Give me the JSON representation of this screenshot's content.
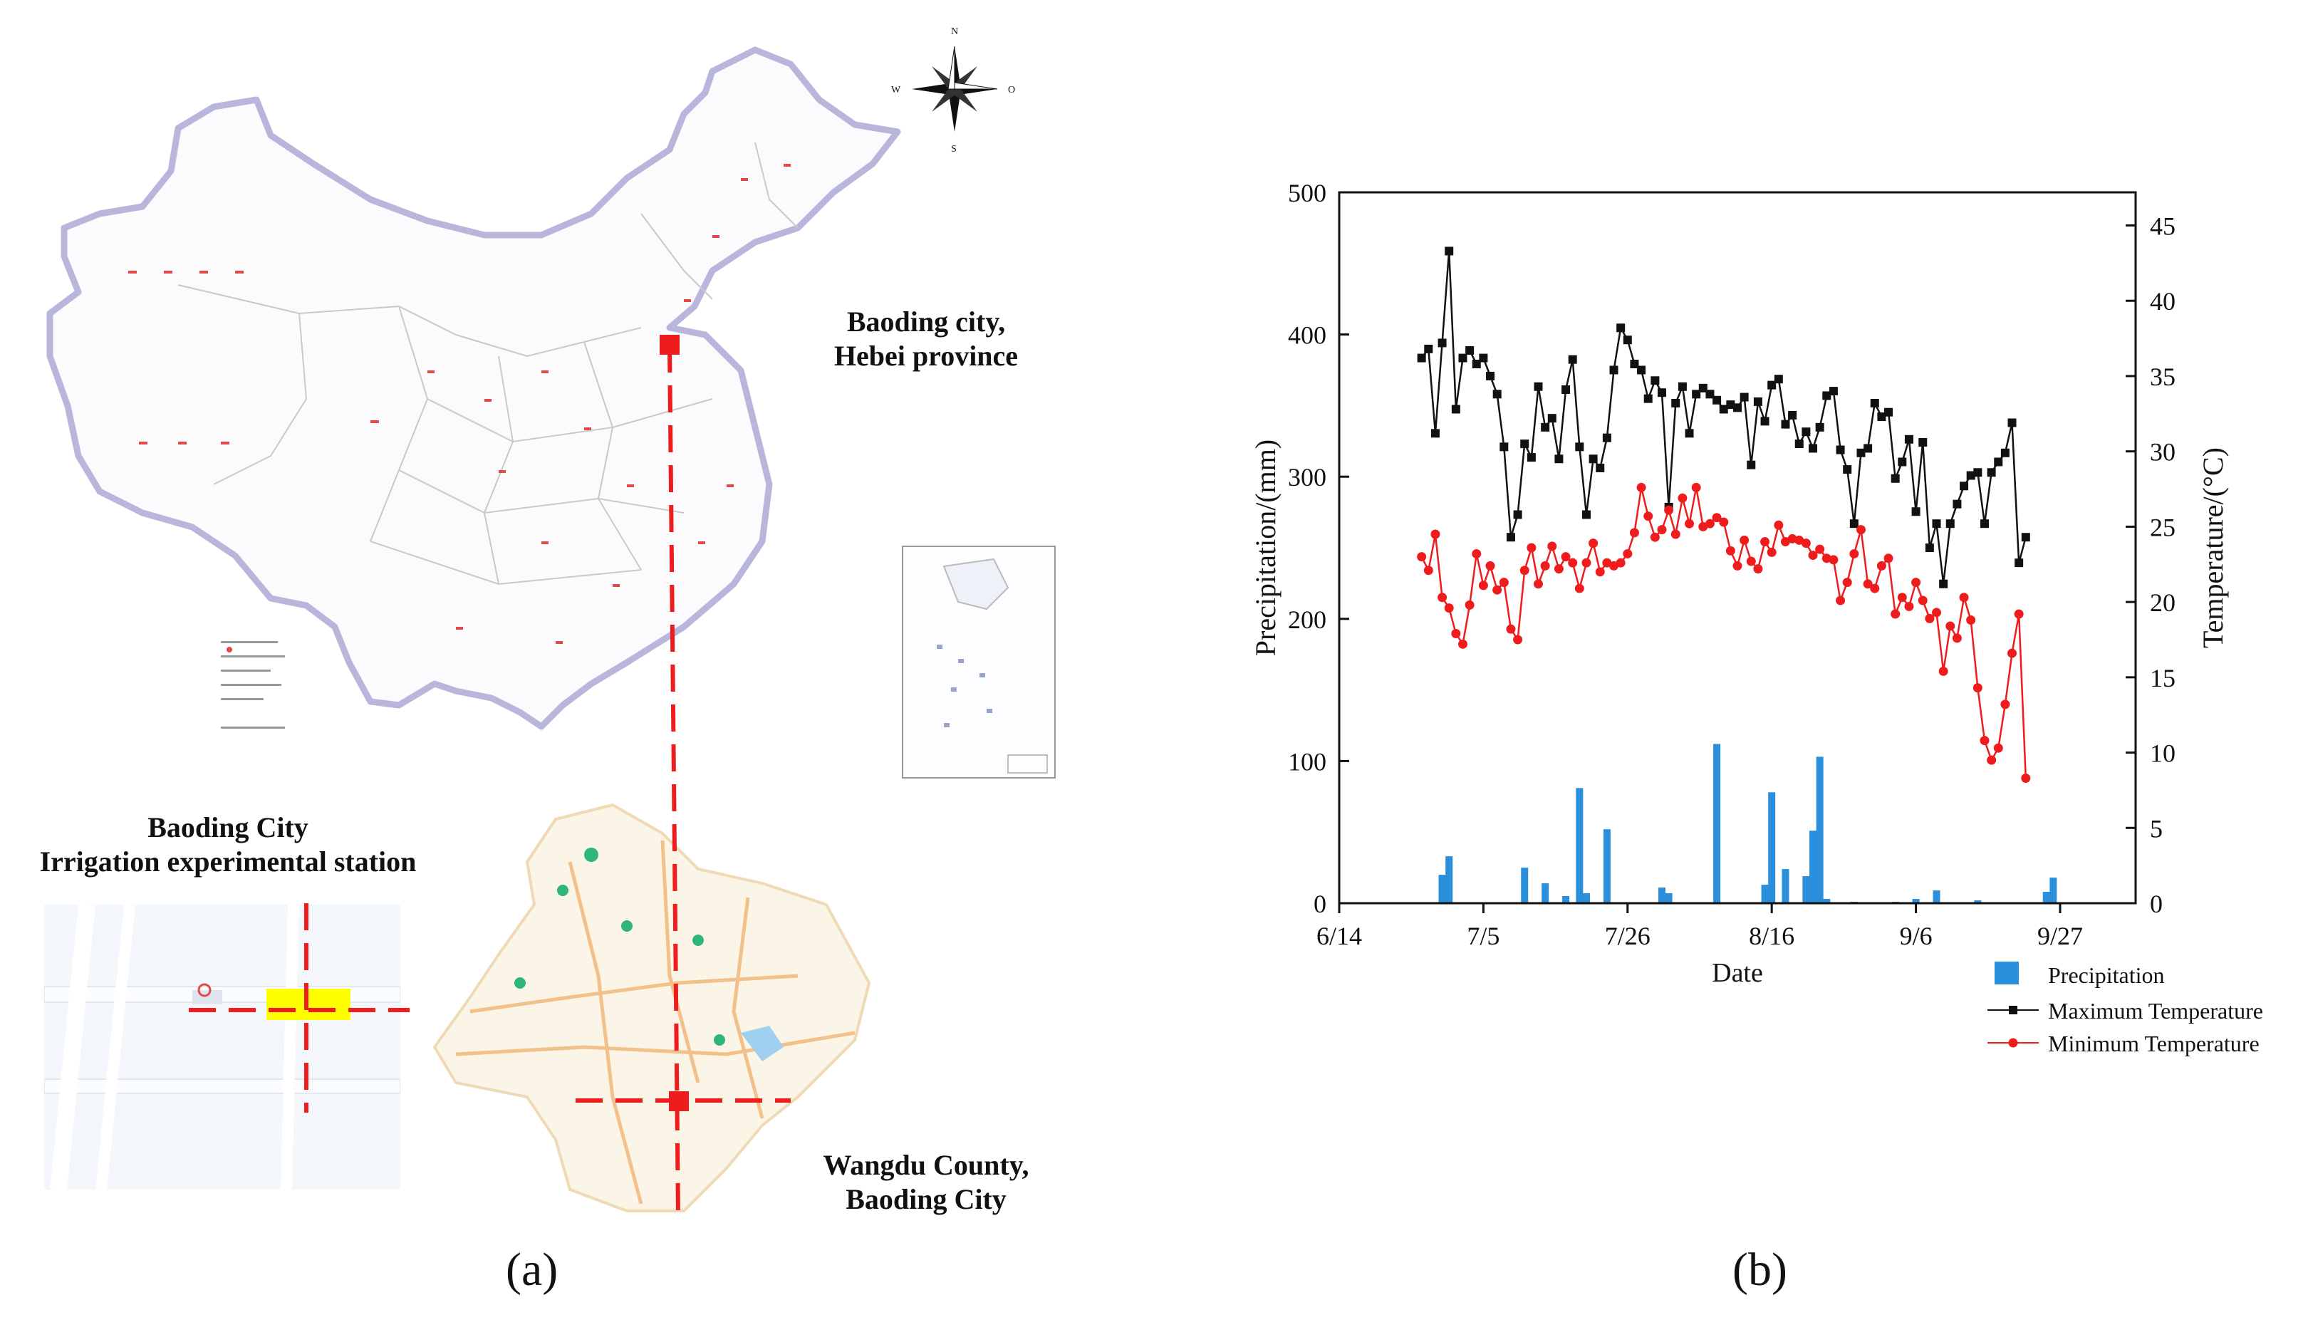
{
  "panel_a": {
    "label": "(a)",
    "labels": {
      "baoding_province": [
        "Baoding city,",
        "Hebei province"
      ],
      "station": [
        "Baoding City",
        "Irrigation experimental station"
      ],
      "wangdu": [
        "Wangdu County,",
        "Baoding City"
      ]
    },
    "compass": {
      "n": "N",
      "s": "S",
      "w": "W",
      "e": "O"
    }
  },
  "panel_b": {
    "label": "(b)"
  },
  "chart_data": {
    "type": "bar+line",
    "xlabel": "Date",
    "ylabel_left": "Precipitation/(mm)",
    "ylabel_right": "Temperature/(°C)",
    "x_ticks": [
      "6/14",
      "7/5",
      "7/26",
      "8/16",
      "9/6",
      "9/27"
    ],
    "x_tick_days": [
      0,
      21,
      42,
      63,
      84,
      105
    ],
    "xlim_days": [
      0,
      116
    ],
    "ylim_left": [
      0,
      500
    ],
    "left_ticks": [
      0,
      100,
      200,
      300,
      400,
      500
    ],
    "ylim_right": [
      0,
      47.2
    ],
    "right_ticks": [
      0,
      5,
      10,
      15,
      20,
      25,
      30,
      35,
      40,
      45
    ],
    "legend": {
      "precip": "Precipitation",
      "tmax": "Maximum Temperature",
      "tmin": "Minimum Temperature"
    },
    "colors": {
      "precip": "#2a8fdc",
      "tmax": "#111111",
      "tmin": "#ee1c1c"
    },
    "series": [
      {
        "name": "Precipitation",
        "axis": "left",
        "day": [
          15,
          16,
          27,
          30,
          33,
          35,
          36,
          39,
          47,
          48,
          55,
          62,
          63,
          65,
          68,
          69,
          70,
          71,
          75,
          81,
          84,
          87,
          93,
          103,
          104
        ],
        "values": [
          20,
          33,
          25,
          14,
          5,
          81,
          7,
          52,
          11,
          7,
          112,
          13,
          78,
          24,
          19,
          51,
          103,
          3,
          1,
          1,
          3,
          9,
          2,
          8,
          18
        ]
      },
      {
        "name": "Maximum Temperature",
        "axis": "right",
        "day": [
          12,
          13,
          14,
          15,
          16,
          17,
          18,
          19,
          20,
          21,
          22,
          23,
          24,
          25,
          26,
          27,
          28,
          29,
          30,
          31,
          32,
          33,
          34,
          35,
          36,
          37,
          38,
          39,
          40,
          41,
          42,
          43,
          44,
          45,
          46,
          47,
          48,
          49,
          50,
          51,
          52,
          53,
          54,
          55,
          56,
          57,
          58,
          59,
          60,
          61,
          62,
          63,
          64,
          65,
          66,
          67,
          68,
          69,
          70,
          71,
          72,
          73,
          74,
          75,
          76,
          77,
          78,
          79,
          80,
          81,
          82,
          83,
          84,
          85,
          86,
          87,
          88,
          89,
          90,
          91,
          92,
          93,
          94,
          95,
          96,
          97,
          98,
          99,
          100
        ],
        "values": [
          36.2,
          36.8,
          31.2,
          37.2,
          43.3,
          32.8,
          36.2,
          36.7,
          35.8,
          36.2,
          35.0,
          33.8,
          30.3,
          24.3,
          25.8,
          30.5,
          29.6,
          34.3,
          31.6,
          32.2,
          29.5,
          34.1,
          36.1,
          30.3,
          25.8,
          29.5,
          28.9,
          30.9,
          35.4,
          38.2,
          37.4,
          35.8,
          35.4,
          33.5,
          34.7,
          33.9,
          26.3,
          33.2,
          34.3,
          31.2,
          33.8,
          34.2,
          33.8,
          33.4,
          32.8,
          33.1,
          32.9,
          33.6,
          29.1,
          33.3,
          32.0,
          34.4,
          34.8,
          31.8,
          32.4,
          30.5,
          31.3,
          30.2,
          31.6,
          33.7,
          34.0,
          30.1,
          28.8,
          25.2,
          29.9,
          30.2,
          33.2,
          32.3,
          32.6,
          28.2,
          29.3,
          30.8,
          26.0,
          30.6,
          23.6,
          25.2,
          21.2,
          25.2,
          26.5,
          27.7,
          28.4,
          28.6,
          25.2,
          28.6,
          29.3,
          29.9,
          31.9,
          22.6,
          24.3
        ]
      },
      {
        "name": "Minimum Temperature",
        "axis": "right",
        "day": [
          12,
          13,
          14,
          15,
          16,
          17,
          18,
          19,
          20,
          21,
          22,
          23,
          24,
          25,
          26,
          27,
          28,
          29,
          30,
          31,
          32,
          33,
          34,
          35,
          36,
          37,
          38,
          39,
          40,
          41,
          42,
          43,
          44,
          45,
          46,
          47,
          48,
          49,
          50,
          51,
          52,
          53,
          54,
          55,
          56,
          57,
          58,
          59,
          60,
          61,
          62,
          63,
          64,
          65,
          66,
          67,
          68,
          69,
          70,
          71,
          72,
          73,
          74,
          75,
          76,
          77,
          78,
          79,
          80,
          81,
          82,
          83,
          84,
          85,
          86,
          87,
          88,
          89,
          90,
          91,
          92,
          93,
          94,
          95,
          96,
          97,
          98,
          99,
          100
        ],
        "values": [
          23.0,
          22.1,
          24.5,
          20.3,
          19.6,
          17.9,
          17.2,
          19.8,
          23.2,
          21.1,
          22.4,
          20.8,
          21.3,
          18.2,
          17.5,
          22.1,
          23.6,
          21.2,
          22.4,
          23.7,
          22.2,
          23.0,
          22.6,
          20.9,
          22.6,
          23.9,
          22.0,
          22.6,
          22.4,
          22.6,
          23.2,
          24.6,
          27.6,
          25.7,
          24.3,
          24.8,
          26.1,
          24.5,
          26.9,
          25.2,
          27.6,
          25.0,
          25.2,
          25.6,
          25.3,
          23.4,
          22.4,
          24.1,
          22.7,
          22.2,
          24.0,
          23.3,
          25.1,
          24.0,
          24.2,
          24.1,
          23.9,
          23.1,
          23.5,
          22.9,
          22.8,
          20.1,
          21.3,
          23.2,
          24.8,
          21.2,
          20.9,
          22.4,
          22.9,
          19.2,
          20.3,
          19.7,
          21.3,
          20.1,
          18.9,
          19.3,
          15.4,
          18.4,
          17.6,
          20.3,
          18.8,
          14.3,
          10.8,
          9.5,
          10.3,
          13.2,
          16.6,
          19.2,
          8.3
        ]
      }
    ]
  }
}
